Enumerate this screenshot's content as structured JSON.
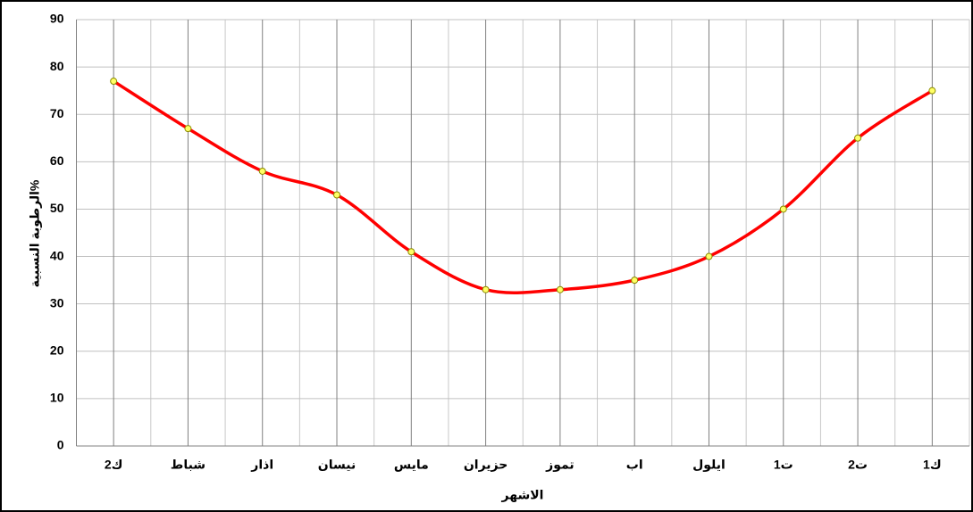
{
  "chart_data": {
    "type": "line",
    "x_label": "الاشهر",
    "y_label": "الرطوبة النسبية%",
    "categories": [
      "ك2",
      "شباط",
      "اذار",
      "نيسان",
      "مايس",
      "حزيران",
      "تموز",
      "اب",
      "ايلول",
      "ت1",
      "ت2",
      "ك1"
    ],
    "series": [
      {
        "name": null,
        "color": "#ff0000",
        "marker_color": "#ffff66",
        "values": [
          77,
          67,
          58,
          53,
          41,
          33,
          33,
          35,
          40,
          50,
          65,
          75
        ]
      }
    ],
    "ylim": [
      0,
      90
    ],
    "yticks": [
      0,
      10,
      20,
      30,
      40,
      50,
      60,
      70,
      80,
      90
    ],
    "grid": true,
    "smooth": true
  }
}
